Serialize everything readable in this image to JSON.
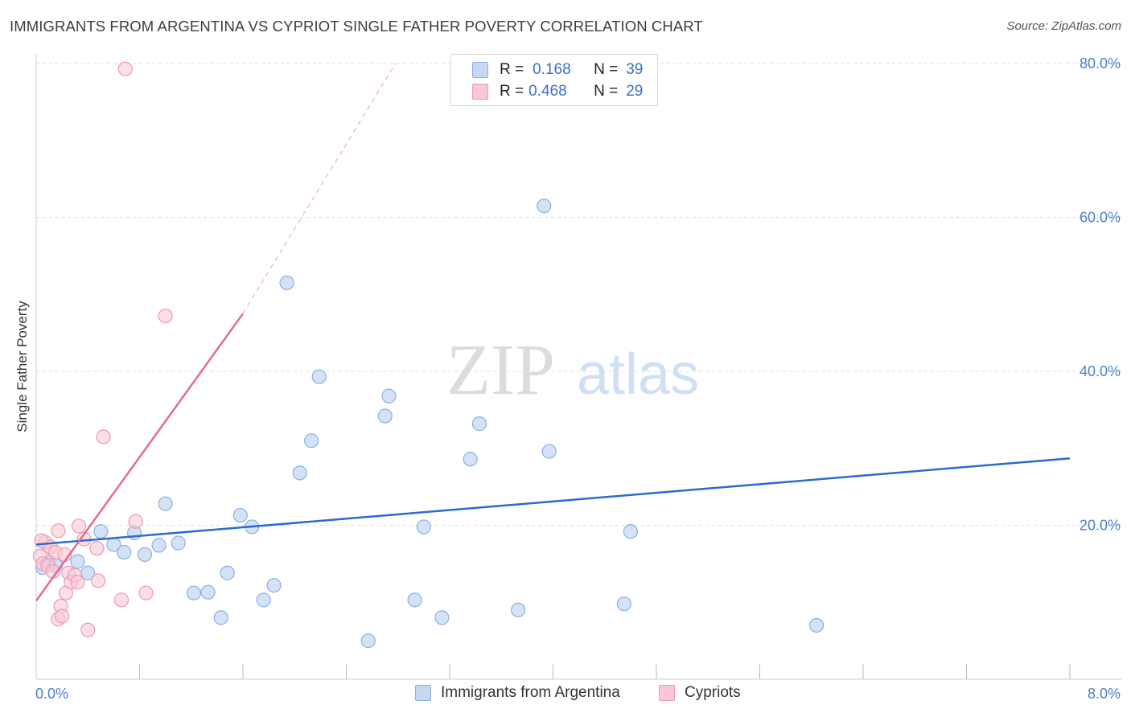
{
  "title": "IMMIGRANTS FROM ARGENTINA VS CYPRIOT SINGLE FATHER POVERTY CORRELATION CHART",
  "source": "Source: ZipAtlas.com",
  "watermark": {
    "zip": "ZIP",
    "atlas": "atlas"
  },
  "colors": {
    "blue_fill": "#c6d8f2",
    "blue_stroke": "#8ab0e4",
    "blue_line": "#2a6ccc",
    "pink_fill": "#f9c8d6",
    "pink_stroke": "#ee9ab4",
    "pink_line": "#e26a96",
    "axis_label": "#4a7fd0",
    "grid": "#dedede"
  },
  "legend": {
    "rows": [
      {
        "r_label": "R =",
        "r_value": "0.168",
        "n_label": "N =",
        "n_value": "39"
      },
      {
        "r_label": "R =",
        "r_value": "0.468",
        "n_label": "N =",
        "n_value": "29"
      }
    ]
  },
  "bottom_legend": [
    "Immigrants from Argentina",
    "Cypriots"
  ],
  "chart_data": {
    "type": "scatter",
    "title": "IMMIGRANTS FROM ARGENTINA VS CYPRIOT SINGLE FATHER POVERTY CORRELATION CHART",
    "xlabel": "",
    "ylabel": "Single Father Poverty",
    "xlim": [
      0,
      8.0
    ],
    "ylim": [
      0,
      80.0
    ],
    "x_tick_labels": [
      "0.0%",
      "8.0%"
    ],
    "y_tick_labels": [
      "80.0%",
      "60.0%",
      "40.0%",
      "20.0%"
    ],
    "y_ticks": [
      80,
      60,
      40,
      20
    ],
    "grid": true,
    "series": [
      {
        "name": "Immigrants from Argentina",
        "points": [
          [
            0.05,
            14.5
          ],
          [
            0.1,
            15.2
          ],
          [
            0.15,
            14.8
          ],
          [
            0.32,
            15.3
          ],
          [
            0.4,
            13.8
          ],
          [
            0.5,
            19.2
          ],
          [
            0.6,
            17.5
          ],
          [
            0.68,
            16.5
          ],
          [
            0.76,
            19.0
          ],
          [
            0.84,
            16.2
          ],
          [
            0.95,
            17.4
          ],
          [
            1.0,
            22.8
          ],
          [
            1.1,
            17.7
          ],
          [
            1.22,
            11.2
          ],
          [
            1.33,
            11.3
          ],
          [
            1.43,
            8.0
          ],
          [
            1.48,
            13.8
          ],
          [
            1.58,
            21.3
          ],
          [
            1.67,
            19.8
          ],
          [
            1.76,
            10.3
          ],
          [
            1.84,
            12.2
          ],
          [
            1.94,
            51.5
          ],
          [
            2.04,
            26.8
          ],
          [
            2.13,
            31.0
          ],
          [
            2.19,
            39.3
          ],
          [
            2.57,
            5.0
          ],
          [
            2.7,
            34.2
          ],
          [
            2.73,
            36.8
          ],
          [
            2.93,
            10.3
          ],
          [
            3.0,
            19.8
          ],
          [
            3.14,
            8.0
          ],
          [
            3.36,
            28.6
          ],
          [
            3.43,
            33.2
          ],
          [
            3.73,
            9.0
          ],
          [
            3.93,
            61.5
          ],
          [
            3.97,
            29.6
          ],
          [
            4.55,
            9.8
          ],
          [
            4.6,
            19.2
          ],
          [
            6.04,
            7.0
          ]
        ],
        "trend": {
          "x0": 0.0,
          "y0": 17.5,
          "x1": 8.0,
          "y1": 28.7
        }
      },
      {
        "name": "Cypriots",
        "points": [
          [
            0.03,
            16.0
          ],
          [
            0.05,
            15.0
          ],
          [
            0.07,
            17.8
          ],
          [
            0.09,
            14.8
          ],
          [
            0.11,
            17.2
          ],
          [
            0.13,
            14.0
          ],
          [
            0.15,
            16.5
          ],
          [
            0.17,
            19.3
          ],
          [
            0.17,
            7.8
          ],
          [
            0.19,
            9.5
          ],
          [
            0.2,
            8.2
          ],
          [
            0.22,
            16.2
          ],
          [
            0.23,
            11.2
          ],
          [
            0.25,
            13.8
          ],
          [
            0.27,
            12.6
          ],
          [
            0.3,
            13.5
          ],
          [
            0.32,
            12.6
          ],
          [
            0.33,
            19.9
          ],
          [
            0.37,
            18.2
          ],
          [
            0.4,
            6.4
          ],
          [
            0.47,
            17.0
          ],
          [
            0.48,
            12.8
          ],
          [
            0.52,
            31.5
          ],
          [
            0.66,
            10.3
          ],
          [
            0.69,
            79.3
          ],
          [
            0.77,
            20.5
          ],
          [
            0.85,
            11.2
          ],
          [
            1.0,
            47.2
          ],
          [
            0.04,
            18.0
          ]
        ],
        "trend": {
          "x0": 0.0,
          "y0": 10.2,
          "x1": 1.6,
          "y1": 47.5
        },
        "trend_extension": {
          "x0": 1.6,
          "y0": 47.5,
          "x1": 2.78,
          "y1": 80.0
        }
      }
    ]
  }
}
